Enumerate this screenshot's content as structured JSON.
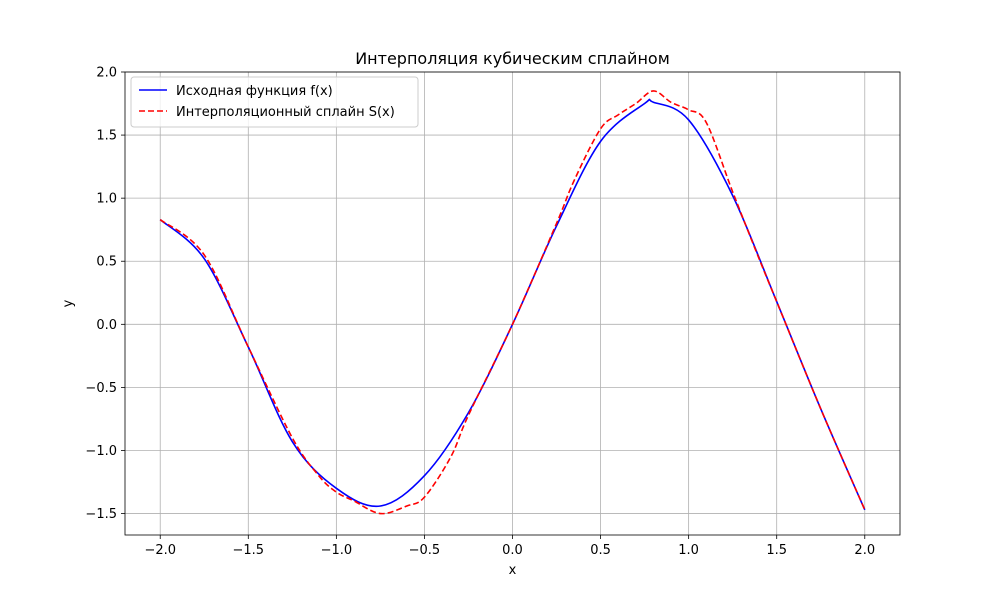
{
  "chart_data": {
    "type": "line",
    "title": "Интерполяция кубическим сплайном",
    "xlabel": "x",
    "ylabel": "y",
    "xlim": [
      -2.2,
      2.2
    ],
    "ylim": [
      -1.67,
      2.0
    ],
    "xticks": [
      -2.0,
      -1.5,
      -1.0,
      -0.5,
      0.0,
      0.5,
      1.0,
      1.5,
      2.0
    ],
    "yticks": [
      -1.5,
      -1.0,
      -0.5,
      0.0,
      0.5,
      1.0,
      1.5,
      2.0
    ],
    "xtick_labels": [
      "−2.0",
      "−1.5",
      "−1.0",
      "−0.5",
      "0.0",
      "0.5",
      "1.0",
      "1.5",
      "2.0"
    ],
    "ytick_labels": [
      "−1.5",
      "−1.0",
      "−0.5",
      "0.0",
      "0.5",
      "1.0",
      "1.5",
      "2.0"
    ],
    "grid": true,
    "legend_position": "upper-left",
    "series": [
      {
        "name": "Исходная функция f(x)",
        "color": "#0000ff",
        "line_style": "solid",
        "x": [
          -2.0,
          -1.75,
          -1.5,
          -1.25,
          -1.0,
          -0.75,
          -0.5,
          -0.25,
          0.0,
          0.25,
          0.5,
          0.75,
          0.8,
          1.0,
          1.25,
          1.5,
          1.75,
          2.0
        ],
        "y": [
          0.83,
          0.52,
          -0.18,
          -0.93,
          -1.3,
          -1.44,
          -1.2,
          -0.7,
          0.0,
          0.78,
          1.45,
          1.75,
          1.76,
          1.62,
          1.02,
          0.18,
          -0.67,
          -1.47
        ]
      },
      {
        "name": "Интерполяционный сплайн S(x)",
        "color": "#ff0000",
        "line_style": "dashed",
        "x": [
          -2.0,
          -1.75,
          -1.5,
          -1.25,
          -1.1,
          -1.0,
          -0.9,
          -0.75,
          -0.6,
          -0.5,
          -0.35,
          -0.25,
          0.0,
          0.25,
          0.35,
          0.5,
          0.6,
          0.7,
          0.8,
          0.9,
          1.0,
          1.1,
          1.25,
          1.4,
          1.5,
          1.75,
          2.0
        ],
        "y": [
          0.83,
          0.55,
          -0.18,
          -0.9,
          -1.2,
          -1.33,
          -1.4,
          -1.5,
          -1.44,
          -1.37,
          -1.05,
          -0.72,
          0.0,
          0.8,
          1.14,
          1.55,
          1.66,
          1.75,
          1.85,
          1.76,
          1.7,
          1.6,
          1.05,
          0.52,
          0.18,
          -0.67,
          -1.47
        ]
      }
    ]
  }
}
